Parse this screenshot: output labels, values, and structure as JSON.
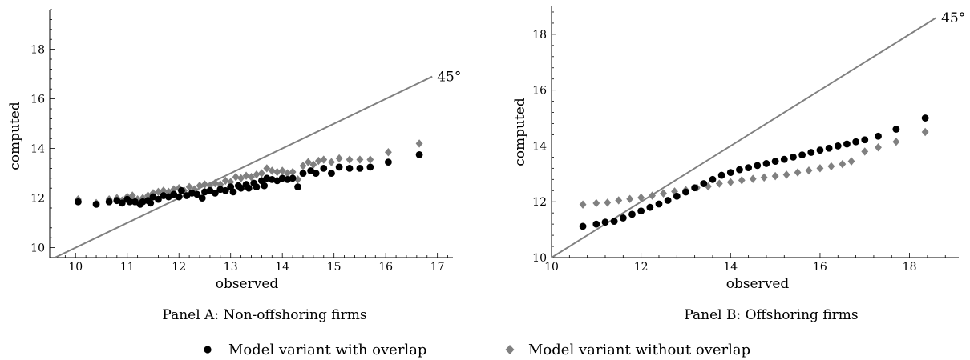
{
  "chart_data": [
    {
      "type": "scatter",
      "title": "",
      "xlabel": "observed",
      "ylabel": "computed",
      "caption": "Panel A: Non-offshoring firms",
      "xlim": [
        9.5,
        17.3
      ],
      "ylim": [
        9.6,
        19.6
      ],
      "xticks": [
        10,
        11,
        12,
        13,
        14,
        15,
        16,
        17
      ],
      "yticks": [
        10,
        12,
        14,
        16,
        18
      ],
      "reference_line": {
        "label": "45°",
        "slope": 1,
        "intercept": 0,
        "end_x": 16.9
      },
      "series": [
        {
          "name": "Model variant with overlap",
          "marker": "circle",
          "color": "#000000",
          "points": [
            [
              10.05,
              11.85
            ],
            [
              10.4,
              11.75
            ],
            [
              10.65,
              11.85
            ],
            [
              10.8,
              11.9
            ],
            [
              10.9,
              11.8
            ],
            [
              11.0,
              11.95
            ],
            [
              11.05,
              11.85
            ],
            [
              11.15,
              11.85
            ],
            [
              11.25,
              11.75
            ],
            [
              11.3,
              11.85
            ],
            [
              11.4,
              11.9
            ],
            [
              11.45,
              11.8
            ],
            [
              11.5,
              12.05
            ],
            [
              11.6,
              11.95
            ],
            [
              11.7,
              12.1
            ],
            [
              11.8,
              12.05
            ],
            [
              11.9,
              12.15
            ],
            [
              12.0,
              12.05
            ],
            [
              12.05,
              12.3
            ],
            [
              12.15,
              12.1
            ],
            [
              12.25,
              12.2
            ],
            [
              12.35,
              12.15
            ],
            [
              12.45,
              12.0
            ],
            [
              12.5,
              12.25
            ],
            [
              12.6,
              12.3
            ],
            [
              12.7,
              12.2
            ],
            [
              12.8,
              12.35
            ],
            [
              12.9,
              12.3
            ],
            [
              13.0,
              12.45
            ],
            [
              13.05,
              12.25
            ],
            [
              13.15,
              12.5
            ],
            [
              13.2,
              12.4
            ],
            [
              13.3,
              12.55
            ],
            [
              13.35,
              12.4
            ],
            [
              13.45,
              12.6
            ],
            [
              13.5,
              12.45
            ],
            [
              13.6,
              12.7
            ],
            [
              13.65,
              12.5
            ],
            [
              13.7,
              12.8
            ],
            [
              13.8,
              12.75
            ],
            [
              13.9,
              12.7
            ],
            [
              14.0,
              12.8
            ],
            [
              14.1,
              12.75
            ],
            [
              14.2,
              12.8
            ],
            [
              14.3,
              12.45
            ],
            [
              14.4,
              13.0
            ],
            [
              14.55,
              13.1
            ],
            [
              14.65,
              13.0
            ],
            [
              14.8,
              13.2
            ],
            [
              14.95,
              13.0
            ],
            [
              15.1,
              13.25
            ],
            [
              15.3,
              13.2
            ],
            [
              15.5,
              13.2
            ],
            [
              15.7,
              13.25
            ],
            [
              16.05,
              13.45
            ],
            [
              16.65,
              13.75
            ]
          ]
        },
        {
          "name": "Model variant without overlap",
          "marker": "diamond",
          "color": "#808080",
          "points": [
            [
              10.05,
              11.95
            ],
            [
              10.4,
              11.8
            ],
            [
              10.65,
              11.95
            ],
            [
              10.8,
              12.0
            ],
            [
              10.9,
              11.9
            ],
            [
              11.0,
              12.05
            ],
            [
              11.1,
              12.1
            ],
            [
              11.2,
              11.95
            ],
            [
              11.3,
              12.0
            ],
            [
              11.4,
              12.1
            ],
            [
              11.5,
              12.2
            ],
            [
              11.6,
              12.25
            ],
            [
              11.7,
              12.3
            ],
            [
              11.8,
              12.25
            ],
            [
              11.9,
              12.35
            ],
            [
              12.0,
              12.4
            ],
            [
              12.1,
              12.3
            ],
            [
              12.2,
              12.45
            ],
            [
              12.3,
              12.35
            ],
            [
              12.4,
              12.5
            ],
            [
              12.5,
              12.55
            ],
            [
              12.6,
              12.5
            ],
            [
              12.7,
              12.6
            ],
            [
              12.8,
              12.55
            ],
            [
              12.9,
              12.7
            ],
            [
              13.0,
              12.65
            ],
            [
              13.1,
              12.85
            ],
            [
              13.2,
              12.8
            ],
            [
              13.3,
              12.9
            ],
            [
              13.4,
              12.85
            ],
            [
              13.5,
              12.95
            ],
            [
              13.6,
              13.0
            ],
            [
              13.7,
              13.2
            ],
            [
              13.8,
              13.1
            ],
            [
              13.9,
              13.05
            ],
            [
              14.0,
              13.1
            ],
            [
              14.1,
              13.0
            ],
            [
              14.2,
              13.05
            ],
            [
              14.3,
              12.75
            ],
            [
              14.4,
              13.3
            ],
            [
              14.5,
              13.45
            ],
            [
              14.6,
              13.35
            ],
            [
              14.7,
              13.5
            ],
            [
              14.8,
              13.55
            ],
            [
              14.95,
              13.45
            ],
            [
              15.1,
              13.6
            ],
            [
              15.3,
              13.55
            ],
            [
              15.5,
              13.55
            ],
            [
              15.7,
              13.55
            ],
            [
              16.05,
              13.85
            ],
            [
              16.65,
              14.2
            ]
          ]
        }
      ]
    },
    {
      "type": "scatter",
      "title": "",
      "xlabel": "observed",
      "ylabel": "computed",
      "caption": "Panel B: Offshoring firms",
      "xlim": [
        10,
        19.1
      ],
      "ylim": [
        10,
        19.0
      ],
      "xticks": [
        10,
        12,
        14,
        16,
        18
      ],
      "yticks": [
        10,
        12,
        14,
        16,
        18
      ],
      "reference_line": {
        "label": "45°",
        "slope": 1,
        "intercept": 0,
        "end_x": 18.6
      },
      "series": [
        {
          "name": "Model variant with overlap",
          "marker": "circle",
          "color": "#000000",
          "points": [
            [
              10.7,
              11.12
            ],
            [
              11.0,
              11.2
            ],
            [
              11.2,
              11.27
            ],
            [
              11.4,
              11.3
            ],
            [
              11.6,
              11.42
            ],
            [
              11.8,
              11.55
            ],
            [
              12.0,
              11.67
            ],
            [
              12.2,
              11.8
            ],
            [
              12.4,
              11.92
            ],
            [
              12.6,
              12.05
            ],
            [
              12.8,
              12.2
            ],
            [
              13.0,
              12.35
            ],
            [
              13.2,
              12.5
            ],
            [
              13.4,
              12.65
            ],
            [
              13.6,
              12.8
            ],
            [
              13.8,
              12.95
            ],
            [
              14.0,
              13.05
            ],
            [
              14.2,
              13.15
            ],
            [
              14.4,
              13.22
            ],
            [
              14.6,
              13.3
            ],
            [
              14.8,
              13.37
            ],
            [
              15.0,
              13.45
            ],
            [
              15.2,
              13.52
            ],
            [
              15.4,
              13.6
            ],
            [
              15.6,
              13.68
            ],
            [
              15.8,
              13.77
            ],
            [
              16.0,
              13.85
            ],
            [
              16.2,
              13.92
            ],
            [
              16.4,
              14.0
            ],
            [
              16.6,
              14.07
            ],
            [
              16.8,
              14.15
            ],
            [
              17.0,
              14.22
            ],
            [
              17.3,
              14.35
            ],
            [
              17.7,
              14.6
            ],
            [
              18.35,
              15.0
            ]
          ]
        },
        {
          "name": "Model variant without overlap",
          "marker": "diamond",
          "color": "#808080",
          "points": [
            [
              10.7,
              11.9
            ],
            [
              11.0,
              11.95
            ],
            [
              11.25,
              11.97
            ],
            [
              11.5,
              12.05
            ],
            [
              11.75,
              12.1
            ],
            [
              12.0,
              12.15
            ],
            [
              12.25,
              12.22
            ],
            [
              12.5,
              12.3
            ],
            [
              12.75,
              12.37
            ],
            [
              13.0,
              12.42
            ],
            [
              13.25,
              12.5
            ],
            [
              13.5,
              12.55
            ],
            [
              13.75,
              12.65
            ],
            [
              14.0,
              12.7
            ],
            [
              14.25,
              12.77
            ],
            [
              14.5,
              12.82
            ],
            [
              14.75,
              12.87
            ],
            [
              15.0,
              12.92
            ],
            [
              15.25,
              12.97
            ],
            [
              15.5,
              13.05
            ],
            [
              15.75,
              13.12
            ],
            [
              16.0,
              13.2
            ],
            [
              16.25,
              13.27
            ],
            [
              16.5,
              13.35
            ],
            [
              16.7,
              13.45
            ],
            [
              17.0,
              13.8
            ],
            [
              17.3,
              13.95
            ],
            [
              17.7,
              14.15
            ],
            [
              18.35,
              14.5
            ]
          ]
        }
      ]
    }
  ],
  "legend": {
    "items": [
      {
        "label": "Model variant with overlap",
        "marker": "circle",
        "color": "#000000"
      },
      {
        "label": "Model variant without overlap",
        "marker": "diamond",
        "color": "#808080"
      }
    ]
  },
  "colors": {
    "reference_line": "#808080",
    "axes": "#000000"
  }
}
